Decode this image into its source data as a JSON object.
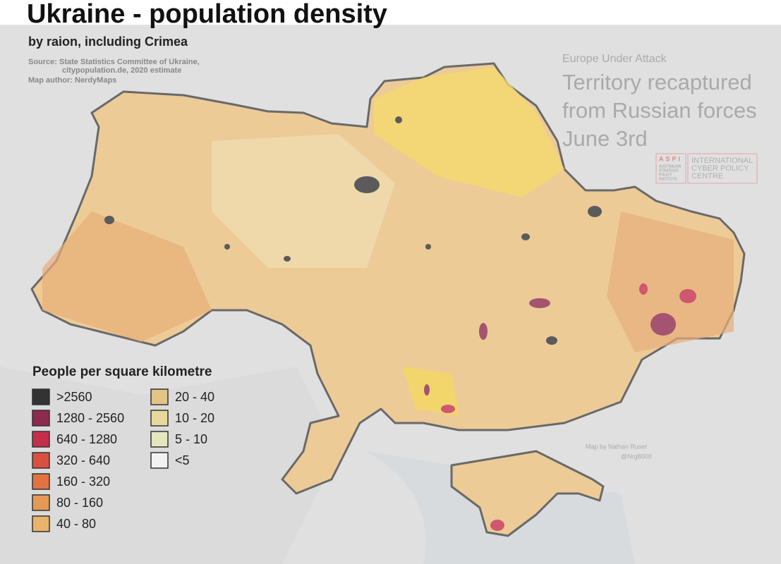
{
  "header": {
    "title": "Ukraine - population density",
    "subtitle": "by raion, including Crimea",
    "source_lines": [
      "Source: State Statistics Committee of Ukraine,",
      "citypopulation.de, 2020 estimate"
    ],
    "author": "Map author: NerdyMaps"
  },
  "overlay": {
    "kicker": "Europe Under Attack",
    "headline_lines": [
      "Territory recaptured",
      "from Russian forces",
      "June 3rd"
    ],
    "logo_mark": "ASPI",
    "logo_small_lines": [
      "AUSTRALIAN",
      "STRATEGIC",
      "POLICY",
      "INSTITUTE"
    ],
    "logo_lines": [
      "INTERNATIONAL",
      "CYBER POLICY",
      "CENTRE"
    ],
    "credit": "Map by Nathan Ruser",
    "handle": "@Nrg8000"
  },
  "legend": {
    "title": "People per square kilometre",
    "items": [
      {
        "label": ">2560",
        "color": "#333333"
      },
      {
        "label": "1280 - 2560",
        "color": "#8e2a4e"
      },
      {
        "label": "640 - 1280",
        "color": "#c42e4a"
      },
      {
        "label": "320 - 640",
        "color": "#d9503f"
      },
      {
        "label": "160 - 320",
        "color": "#e0733f"
      },
      {
        "label": "80 - 160",
        "color": "#e39a55"
      },
      {
        "label": "40 - 80",
        "color": "#e8b46a"
      },
      {
        "label": "20 - 40",
        "color": "#e2c486"
      },
      {
        "label": "10 - 20",
        "color": "#e8d89c"
      },
      {
        "label": "5 - 10",
        "color": "#e4e6bf"
      },
      {
        "label": "<5",
        "color": "#f2f2f2"
      }
    ]
  }
}
